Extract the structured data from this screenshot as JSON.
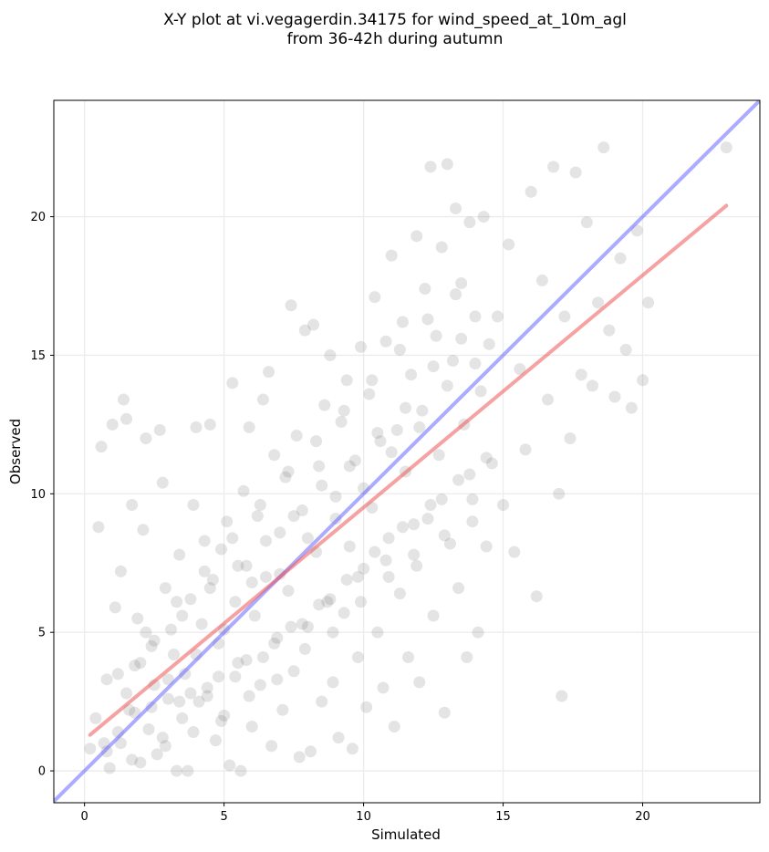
{
  "chart_data": {
    "type": "scatter",
    "title_lines": [
      "X-Y plot at vi.vegagerdin.34175 for wind_speed_at_10m_agl",
      "from 36-42h during autumn"
    ],
    "xlabel": "Simulated",
    "ylabel": "Observed",
    "xlim": [
      -1.1,
      24.2
    ],
    "ylim": [
      -1.15,
      24.2
    ],
    "xticks": [
      0,
      5,
      10,
      15,
      20
    ],
    "yticks": [
      0,
      5,
      10,
      15,
      20
    ],
    "grid": true,
    "point_color": "#555555",
    "reference_lines": [
      {
        "name": "1:1 line",
        "color": "#6666ff",
        "x": [
          -1.1,
          24.2
        ],
        "y": [
          -1.1,
          24.2
        ]
      },
      {
        "name": "regression fit",
        "color": "#ee5555",
        "x": [
          0.2,
          23.0
        ],
        "y": [
          1.3,
          20.4
        ]
      }
    ],
    "points_estimated": [
      [
        0.2,
        0.8
      ],
      [
        0.4,
        1.9
      ],
      [
        0.5,
        8.8
      ],
      [
        0.6,
        11.7
      ],
      [
        0.7,
        1.0
      ],
      [
        0.8,
        3.3
      ],
      [
        0.9,
        0.1
      ],
      [
        1.0,
        12.5
      ],
      [
        1.1,
        5.9
      ],
      [
        1.2,
        1.4
      ],
      [
        1.3,
        7.2
      ],
      [
        1.4,
        13.4
      ],
      [
        1.5,
        12.7
      ],
      [
        1.6,
        2.2
      ],
      [
        1.7,
        9.6
      ],
      [
        1.8,
        3.8
      ],
      [
        1.9,
        5.5
      ],
      [
        2.0,
        0.3
      ],
      [
        2.1,
        8.7
      ],
      [
        2.2,
        12.0
      ],
      [
        2.3,
        1.5
      ],
      [
        2.4,
        4.5
      ],
      [
        2.5,
        3.1
      ],
      [
        2.6,
        0.6
      ],
      [
        2.7,
        12.3
      ],
      [
        2.8,
        10.4
      ],
      [
        2.9,
        6.6
      ],
      [
        3.0,
        2.6
      ],
      [
        3.1,
        5.1
      ],
      [
        3.2,
        4.2
      ],
      [
        3.3,
        0.0
      ],
      [
        3.4,
        7.8
      ],
      [
        3.5,
        1.9
      ],
      [
        3.6,
        3.5
      ],
      [
        3.7,
        0.0
      ],
      [
        3.8,
        6.2
      ],
      [
        3.9,
        9.6
      ],
      [
        4.0,
        12.4
      ],
      [
        4.1,
        2.5
      ],
      [
        4.2,
        5.3
      ],
      [
        4.3,
        8.3
      ],
      [
        4.4,
        3.0
      ],
      [
        4.5,
        12.5
      ],
      [
        4.6,
        6.9
      ],
      [
        4.7,
        1.1
      ],
      [
        4.8,
        4.6
      ],
      [
        4.9,
        8.0
      ],
      [
        5.0,
        2.0
      ],
      [
        5.1,
        9.0
      ],
      [
        5.2,
        0.2
      ],
      [
        5.3,
        14.0
      ],
      [
        5.4,
        6.1
      ],
      [
        5.5,
        3.9
      ],
      [
        5.6,
        0.0
      ],
      [
        5.7,
        10.1
      ],
      [
        5.8,
        7.4
      ],
      [
        5.9,
        12.4
      ],
      [
        6.0,
        1.6
      ],
      [
        6.1,
        5.6
      ],
      [
        6.2,
        9.2
      ],
      [
        6.3,
        3.1
      ],
      [
        6.4,
        13.4
      ],
      [
        6.5,
        7.0
      ],
      [
        6.6,
        14.4
      ],
      [
        6.7,
        0.9
      ],
      [
        6.8,
        11.4
      ],
      [
        6.9,
        4.8
      ],
      [
        7.0,
        8.6
      ],
      [
        7.1,
        2.2
      ],
      [
        7.2,
        10.6
      ],
      [
        7.3,
        6.5
      ],
      [
        7.4,
        16.8
      ],
      [
        7.5,
        3.6
      ],
      [
        7.6,
        12.1
      ],
      [
        7.7,
        0.5
      ],
      [
        7.8,
        9.4
      ],
      [
        7.9,
        15.9
      ],
      [
        8.0,
        5.2
      ],
      [
        8.1,
        0.7
      ],
      [
        8.2,
        16.1
      ],
      [
        8.3,
        7.9
      ],
      [
        8.4,
        11.0
      ],
      [
        8.5,
        2.5
      ],
      [
        8.6,
        13.2
      ],
      [
        8.7,
        6.1
      ],
      [
        8.8,
        15.0
      ],
      [
        8.9,
        3.2
      ],
      [
        9.0,
        9.9
      ],
      [
        9.1,
        1.2
      ],
      [
        9.2,
        12.6
      ],
      [
        9.3,
        5.7
      ],
      [
        9.4,
        14.1
      ],
      [
        9.5,
        8.1
      ],
      [
        9.6,
        0.8
      ],
      [
        9.7,
        11.2
      ],
      [
        9.8,
        4.1
      ],
      [
        9.9,
        15.3
      ],
      [
        10.0,
        7.3
      ],
      [
        10.1,
        2.3
      ],
      [
        10.2,
        13.6
      ],
      [
        10.3,
        9.5
      ],
      [
        10.4,
        17.1
      ],
      [
        10.5,
        5.0
      ],
      [
        10.6,
        11.9
      ],
      [
        10.7,
        3.0
      ],
      [
        10.8,
        15.5
      ],
      [
        10.9,
        8.4
      ],
      [
        11.0,
        18.6
      ],
      [
        11.1,
        1.6
      ],
      [
        11.2,
        12.3
      ],
      [
        11.3,
        6.4
      ],
      [
        11.4,
        16.2
      ],
      [
        11.5,
        10.8
      ],
      [
        11.6,
        4.1
      ],
      [
        11.7,
        14.3
      ],
      [
        11.8,
        7.8
      ],
      [
        11.9,
        19.3
      ],
      [
        12.0,
        3.2
      ],
      [
        12.1,
        13.0
      ],
      [
        12.2,
        17.4
      ],
      [
        12.3,
        9.1
      ],
      [
        12.4,
        21.8
      ],
      [
        12.5,
        5.6
      ],
      [
        12.6,
        15.7
      ],
      [
        12.7,
        11.4
      ],
      [
        12.8,
        18.9
      ],
      [
        12.9,
        2.1
      ],
      [
        13.0,
        21.9
      ],
      [
        13.1,
        8.2
      ],
      [
        13.2,
        14.8
      ],
      [
        13.3,
        20.3
      ],
      [
        13.4,
        6.6
      ],
      [
        13.5,
        17.6
      ],
      [
        13.6,
        12.5
      ],
      [
        13.7,
        4.1
      ],
      [
        13.8,
        19.8
      ],
      [
        13.9,
        9.8
      ],
      [
        14.0,
        16.4
      ],
      [
        14.1,
        5.0
      ],
      [
        14.2,
        13.7
      ],
      [
        14.3,
        20.0
      ],
      [
        14.4,
        8.1
      ],
      [
        14.5,
        15.4
      ],
      [
        14.6,
        11.1
      ],
      [
        14.8,
        16.4
      ],
      [
        15.0,
        9.6
      ],
      [
        15.2,
        19.0
      ],
      [
        15.4,
        7.9
      ],
      [
        15.6,
        14.5
      ],
      [
        15.8,
        11.6
      ],
      [
        16.0,
        20.9
      ],
      [
        16.2,
        6.3
      ],
      [
        16.4,
        17.7
      ],
      [
        16.6,
        13.4
      ],
      [
        16.8,
        21.8
      ],
      [
        17.0,
        10.0
      ],
      [
        17.1,
        2.7
      ],
      [
        17.2,
        16.4
      ],
      [
        17.4,
        12.0
      ],
      [
        17.6,
        21.6
      ],
      [
        17.8,
        14.3
      ],
      [
        18.0,
        19.8
      ],
      [
        18.2,
        13.9
      ],
      [
        18.4,
        16.9
      ],
      [
        18.6,
        22.5
      ],
      [
        18.8,
        15.9
      ],
      [
        19.0,
        13.5
      ],
      [
        19.2,
        18.5
      ],
      [
        19.4,
        15.2
      ],
      [
        19.6,
        13.1
      ],
      [
        19.8,
        19.5
      ],
      [
        20.0,
        14.1
      ],
      [
        20.2,
        16.9
      ],
      [
        23.0,
        22.5
      ],
      [
        1.5,
        2.8
      ],
      [
        2.0,
        3.9
      ],
      [
        2.5,
        4.7
      ],
      [
        3.0,
        3.3
      ],
      [
        3.5,
        5.6
      ],
      [
        4.0,
        4.2
      ],
      [
        4.5,
        6.6
      ],
      [
        5.0,
        5.1
      ],
      [
        5.5,
        7.4
      ],
      [
        6.0,
        6.8
      ],
      [
        6.5,
        8.3
      ],
      [
        7.0,
        7.1
      ],
      [
        7.5,
        9.2
      ],
      [
        8.0,
        8.4
      ],
      [
        8.5,
        10.3
      ],
      [
        9.0,
        9.1
      ],
      [
        9.5,
        11.0
      ],
      [
        10.0,
        10.2
      ],
      [
        10.5,
        12.2
      ],
      [
        11.0,
        11.5
      ],
      [
        11.5,
        13.1
      ],
      [
        12.0,
        12.4
      ],
      [
        12.5,
        14.6
      ],
      [
        13.0,
        13.9
      ],
      [
        13.5,
        15.6
      ],
      [
        14.0,
        14.7
      ],
      [
        1.2,
        3.5
      ],
      [
        1.8,
        2.1
      ],
      [
        2.2,
        5.0
      ],
      [
        2.8,
        1.2
      ],
      [
        3.3,
        6.1
      ],
      [
        3.8,
        2.8
      ],
      [
        4.3,
        7.2
      ],
      [
        4.8,
        3.4
      ],
      [
        5.3,
        8.4
      ],
      [
        5.8,
        4.0
      ],
      [
        6.3,
        9.6
      ],
      [
        6.8,
        4.6
      ],
      [
        7.3,
        10.8
      ],
      [
        7.8,
        5.3
      ],
      [
        8.3,
        11.9
      ],
      [
        8.8,
        6.2
      ],
      [
        9.3,
        13.0
      ],
      [
        9.8,
        7.0
      ],
      [
        10.3,
        14.1
      ],
      [
        10.8,
        7.6
      ],
      [
        11.3,
        15.2
      ],
      [
        11.8,
        8.9
      ],
      [
        12.3,
        16.3
      ],
      [
        12.8,
        9.8
      ],
      [
        13.3,
        17.2
      ],
      [
        13.8,
        10.7
      ],
      [
        0.8,
        0.7
      ],
      [
        1.3,
        1.0
      ],
      [
        1.7,
        0.4
      ],
      [
        2.4,
        2.3
      ],
      [
        2.9,
        0.9
      ],
      [
        3.4,
        2.5
      ],
      [
        3.9,
        1.4
      ],
      [
        4.4,
        2.7
      ],
      [
        4.9,
        1.8
      ],
      [
        5.4,
        3.4
      ],
      [
        5.9,
        2.7
      ],
      [
        6.4,
        4.1
      ],
      [
        6.9,
        3.3
      ],
      [
        7.4,
        5.2
      ],
      [
        7.9,
        4.4
      ],
      [
        8.4,
        6.0
      ],
      [
        8.9,
        5.0
      ],
      [
        9.4,
        6.9
      ],
      [
        9.9,
        6.1
      ],
      [
        10.4,
        7.9
      ],
      [
        10.9,
        7.0
      ],
      [
        11.4,
        8.8
      ],
      [
        11.9,
        7.4
      ],
      [
        12.4,
        9.6
      ],
      [
        12.9,
        8.5
      ],
      [
        13.4,
        10.5
      ],
      [
        13.9,
        9.0
      ],
      [
        14.4,
        11.3
      ]
    ]
  }
}
